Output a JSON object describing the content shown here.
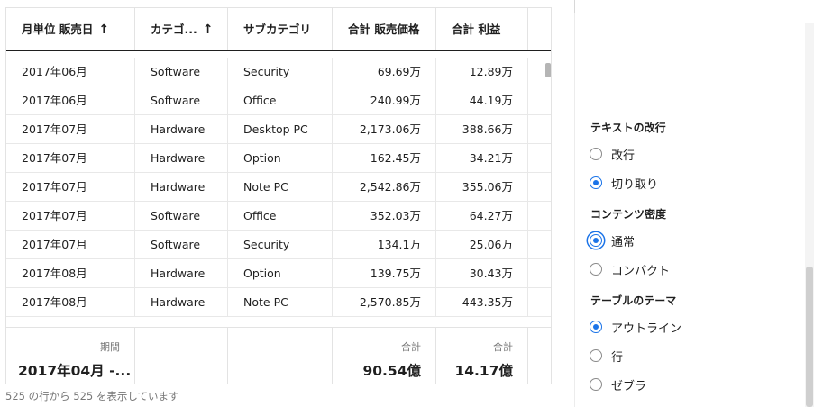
{
  "table": {
    "headers": [
      {
        "label": "月単位 販売日",
        "arrow": "↑"
      },
      {
        "label": "カテゴ...",
        "arrow": "↑"
      },
      {
        "label": "サブカテゴリ",
        "arrow": ""
      },
      {
        "label": "合計 販売価格",
        "arrow": ""
      },
      {
        "label": "合計 利益",
        "arrow": ""
      }
    ],
    "rows": [
      [
        "2017年06月",
        "Software",
        "Security",
        "69.69万",
        "12.89万"
      ],
      [
        "2017年06月",
        "Software",
        "Office",
        "240.99万",
        "44.19万"
      ],
      [
        "2017年07月",
        "Hardware",
        "Desktop PC",
        "2,173.06万",
        "388.66万"
      ],
      [
        "2017年07月",
        "Hardware",
        "Option",
        "162.45万",
        "34.21万"
      ],
      [
        "2017年07月",
        "Hardware",
        "Note PC",
        "2,542.86万",
        "355.06万"
      ],
      [
        "2017年07月",
        "Software",
        "Office",
        "352.03万",
        "64.27万"
      ],
      [
        "2017年07月",
        "Software",
        "Security",
        "134.1万",
        "25.06万"
      ],
      [
        "2017年08月",
        "Hardware",
        "Option",
        "139.75万",
        "30.43万"
      ],
      [
        "2017年08月",
        "Hardware",
        "Note PC",
        "2,570.85万",
        "443.35万"
      ]
    ],
    "footer": {
      "period_label": "期間",
      "period_value": "2017年04月 -...",
      "sales_label": "合計",
      "sales_value": "90.54億",
      "profit_label": "合計",
      "profit_value": "14.17億"
    },
    "status": "525 の行から 525 を表示しています"
  },
  "panel": {
    "sections": [
      {
        "title": "テキストの改行",
        "options": [
          {
            "label": "改行",
            "selected": false,
            "focused": false
          },
          {
            "label": "切り取り",
            "selected": true,
            "focused": false
          }
        ]
      },
      {
        "title": "コンテンツ密度",
        "options": [
          {
            "label": "通常",
            "selected": true,
            "focused": true
          },
          {
            "label": "コンパクト",
            "selected": false,
            "focused": false
          }
        ]
      },
      {
        "title": "テーブルのテーマ",
        "options": [
          {
            "label": "アウトライン",
            "selected": true,
            "focused": false
          },
          {
            "label": "行",
            "selected": false,
            "focused": false
          },
          {
            "label": "ゼブラ",
            "selected": false,
            "focused": false
          }
        ]
      }
    ]
  },
  "colors": {
    "accent": "#1a73e8",
    "header_rule": "#1f1f1f",
    "muted_text": "#777777"
  }
}
